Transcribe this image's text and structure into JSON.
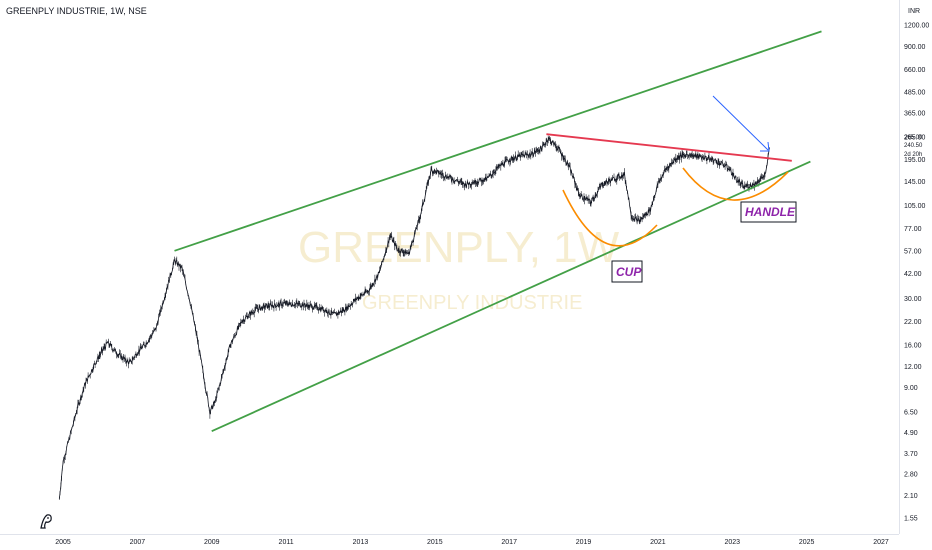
{
  "header": {
    "title": "GREENPLY INDUSTRIE, 1W, NSE"
  },
  "currency": "INR",
  "watermark": {
    "symbol": "GREENPLY, 1W",
    "name": "GREENPLY INDUSTRIE"
  },
  "chart_data": {
    "type": "line",
    "yscale": "log",
    "ylim": [
      1.45,
      1400
    ],
    "xlim": [
      2004.6,
      2027.4
    ],
    "y_ticks": [
      "1200.00",
      "900.00",
      "660.00",
      "485.00",
      "365.00",
      "265.00",
      "195.00",
      "145.00",
      "105.00",
      "77.00",
      "57.00",
      "42.00",
      "30.00",
      "22.00",
      "16.00",
      "12.00",
      "9.00",
      "6.50",
      "4.90",
      "3.70",
      "2.80",
      "2.10",
      "1.55"
    ],
    "x_ticks": [
      "2005",
      "2007",
      "2009",
      "2011",
      "2013",
      "2015",
      "2017",
      "2019",
      "2021",
      "2023",
      "2025",
      "2027"
    ],
    "price_labels": {
      "last_price": "240.50",
      "countdown": "2d 20h",
      "other": "265.00"
    },
    "series": [
      {
        "x": [
          2004.9,
          2005.0,
          2005.2,
          2005.4,
          2005.6,
          2005.9,
          2006.2,
          2006.5,
          2006.8,
          2007.0,
          2007.2,
          2007.5,
          2007.8,
          2008.0,
          2008.2,
          2008.4,
          2008.6,
          2008.8,
          2008.95,
          2009.1,
          2009.3,
          2009.5,
          2009.8,
          2010.2,
          2010.5,
          2011.0,
          2011.5,
          2012.0,
          2012.3,
          2012.6,
          2012.9,
          2013.2,
          2013.5,
          2013.8,
          2014.0,
          2014.3,
          2014.6,
          2014.9,
          2015.2,
          2015.5,
          2015.8,
          2016.1,
          2016.4,
          2016.7,
          2017.0,
          2017.3,
          2017.6,
          2017.9,
          2018.05,
          2018.3,
          2018.6,
          2018.9,
          2019.2,
          2019.5,
          2019.8,
          2020.1,
          2020.3,
          2020.5,
          2020.8,
          2021.0,
          2021.2,
          2021.5,
          2021.8,
          2022.0,
          2022.3,
          2022.6,
          2022.9,
          2023.1,
          2023.3,
          2023.6,
          2023.9,
          2024.0
        ],
        "values": [
          2.0,
          3.3,
          4.8,
          7.0,
          9.5,
          13.0,
          16.5,
          14.0,
          12.5,
          14.5,
          16.0,
          20.0,
          35.0,
          50.0,
          45.0,
          30.0,
          18.0,
          10.0,
          6.5,
          7.5,
          11.0,
          16.0,
          22.0,
          26.0,
          27.0,
          28.0,
          27.5,
          26.0,
          24.0,
          26.0,
          30.0,
          33.0,
          42.0,
          70.0,
          58.0,
          55.0,
          90.0,
          170.0,
          160.0,
          150.0,
          140.0,
          145.0,
          150.0,
          175.0,
          195.0,
          205.0,
          210.0,
          230.0,
          260.0,
          230.0,
          180.0,
          120.0,
          110.0,
          140.0,
          150.0,
          160.0,
          90.0,
          85.0,
          100.0,
          140.0,
          170.0,
          200.0,
          210.0,
          205.0,
          200.0,
          190.0,
          175.0,
          150.0,
          135.0,
          140.0,
          160.0,
          230.0
        ]
      }
    ],
    "trendlines": [
      {
        "name": "upper channel",
        "color": "#43a047",
        "points": [
          [
            2008.0,
            57
          ],
          [
            2025.4,
            1100
          ]
        ]
      },
      {
        "name": "lower channel",
        "color": "#43a047",
        "points": [
          [
            2009.0,
            5.0
          ],
          [
            2025.1,
            190
          ]
        ]
      },
      {
        "name": "resistance",
        "color": "#e53950",
        "points": [
          [
            2018.0,
            275
          ],
          [
            2024.6,
            192
          ]
        ]
      }
    ],
    "annotations": [
      "CUP",
      "HANDLE"
    ]
  },
  "colors": {
    "price": "#131722",
    "channel": "#43a047",
    "resistance": "#e53950",
    "cup": "#fb8c00",
    "arrow": "#2962ff",
    "label": "#8e24aa"
  },
  "icons": {
    "logo": "tradingview-logo-icon"
  }
}
